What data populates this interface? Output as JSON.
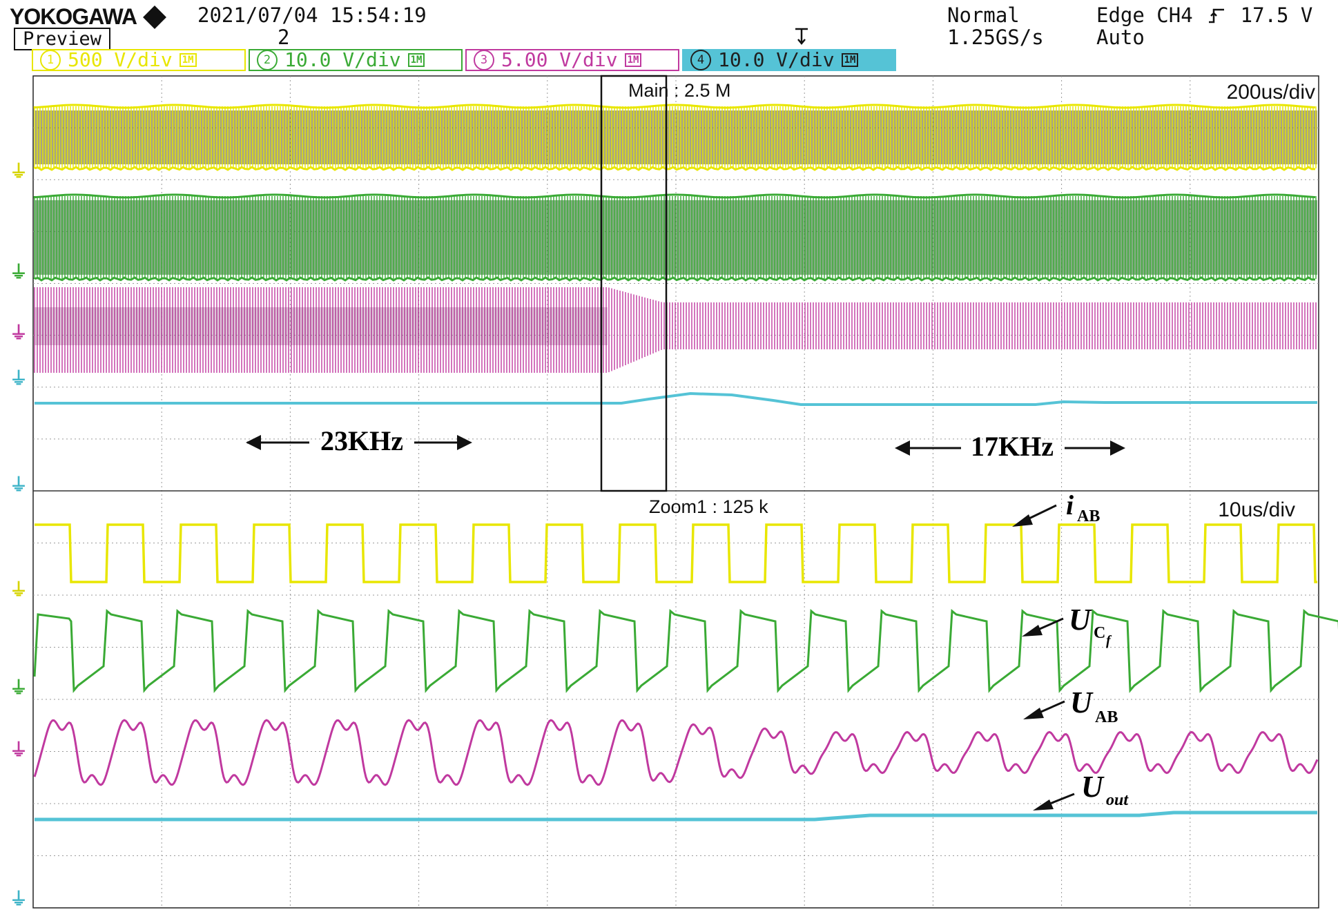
{
  "header": {
    "brand": "YOKOGAWA",
    "datetime": "2021/07/04  15:54:19",
    "mode_label": "Preview",
    "record_number": "2",
    "trigger_mode": "Normal",
    "sample_rate": "1.25GS/s",
    "trigger_source": "Edge CH4",
    "trigger_level": "17.5 V",
    "trigger_slope_icon": "rising-edge-icon",
    "acquisition": "Auto"
  },
  "channels": [
    {
      "num": "1",
      "scale": "500 V/div",
      "bw": "1M",
      "color": "#e8e600",
      "bg": "#ffffff"
    },
    {
      "num": "2",
      "scale": "10.0 V/div",
      "bw": "1M",
      "color": "#3aaa35",
      "bg": "#ffffff"
    },
    {
      "num": "3",
      "scale": "5.00 V/div",
      "bw": "1M",
      "color": "#c0399f",
      "bg": "#ffffff"
    },
    {
      "num": "4",
      "scale": "10.0 V/div",
      "bw": "1M",
      "color": "#1f1f1f",
      "bg": "#55c3d6"
    }
  ],
  "main_window": {
    "label": "Main : 2.5 M",
    "timebase": "200us/div"
  },
  "zoom_window": {
    "label": "Zoom1 : 125 k",
    "timebase": "10us/div"
  },
  "annotations": {
    "freq_left": "23KHz",
    "freq_right": "17KHz",
    "labels": [
      {
        "main": "i",
        "sub": "AB"
      },
      {
        "main": "U",
        "sub": "C",
        "subsub": "f"
      },
      {
        "main": "U",
        "sub": "AB"
      },
      {
        "main": "U",
        "sub": "out"
      }
    ]
  },
  "chart_data": {
    "type": "line",
    "title": "",
    "x_unit": "time",
    "main_timebase": "200us/div",
    "zoom_timebase": "10us/div",
    "switching_frequency_before_kHz": 23,
    "switching_frequency_after_kHz": 17,
    "series": [
      {
        "name": "iAB",
        "channel": 1,
        "scale": "500 V/div",
        "waveform": "square",
        "color": "#e8e600"
      },
      {
        "name": "UCf",
        "channel": 2,
        "scale": "10.0 V/div",
        "waveform": "square-with-ramp",
        "color": "#3aaa35"
      },
      {
        "name": "UAB",
        "channel": 3,
        "scale": "5.00 V/div",
        "waveform": "quasi-sinusoidal",
        "color": "#c0399f"
      },
      {
        "name": "Uout",
        "channel": 4,
        "scale": "10.0 V/div",
        "waveform": "dc-step",
        "color": "#55c3d6"
      }
    ],
    "grid": true
  }
}
